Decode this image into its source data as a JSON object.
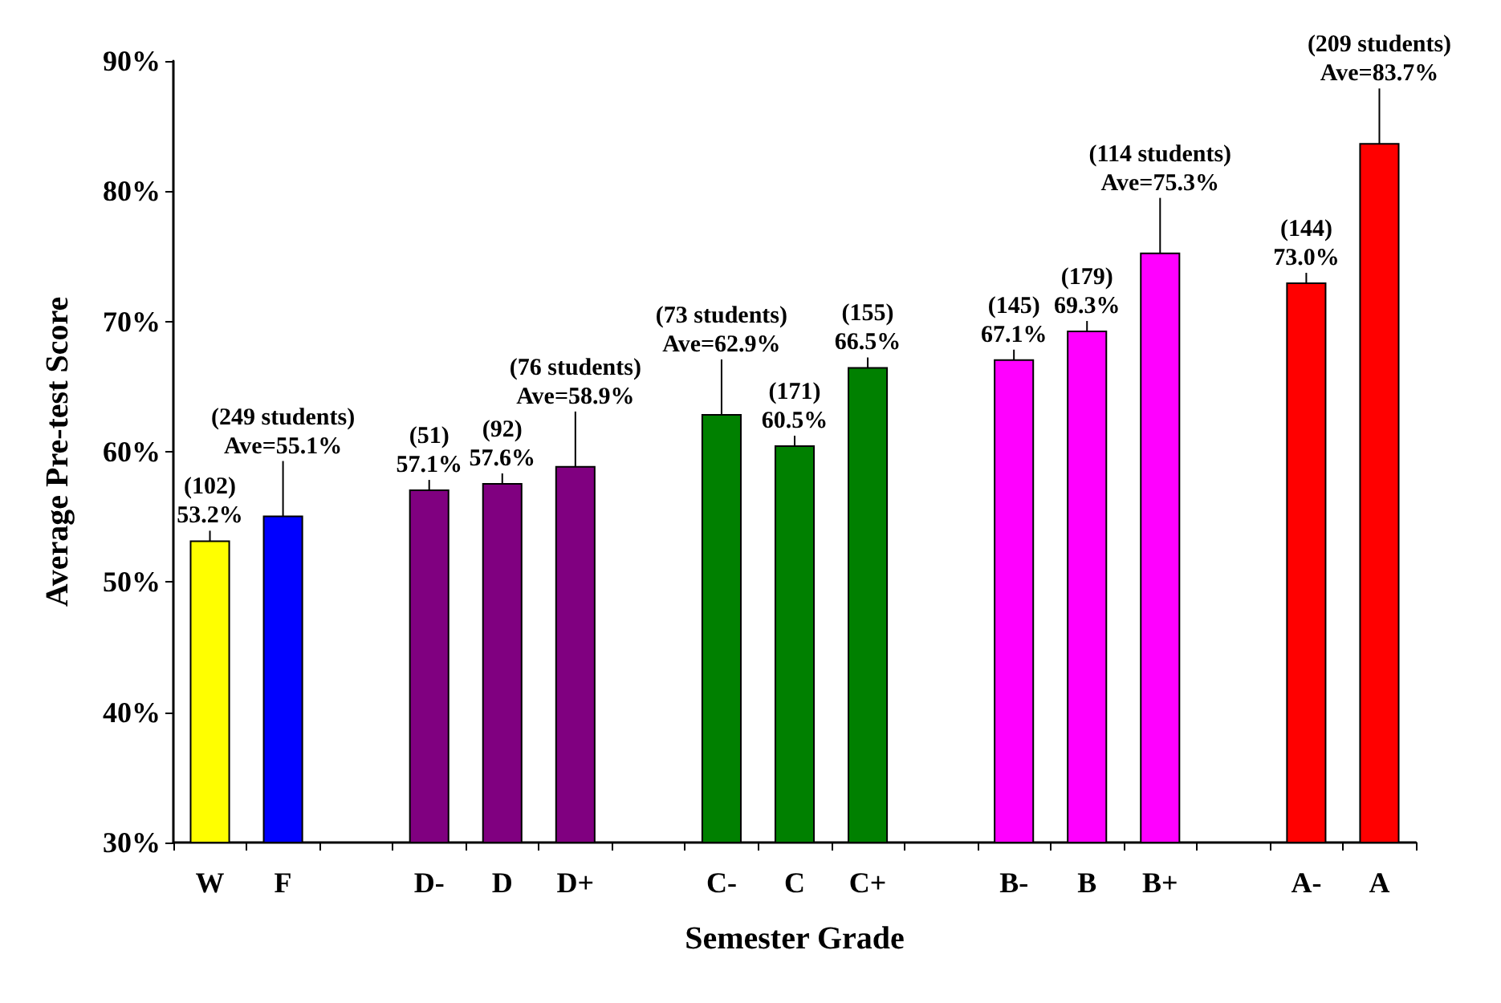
{
  "chart_data": {
    "type": "bar",
    "xlabel": "Semester Grade",
    "ylabel": "Average Pre-test Score",
    "categories": [
      "W",
      "F",
      null,
      "D-",
      "D",
      "D+",
      null,
      "C-",
      "C",
      "C+",
      null,
      "B-",
      "B",
      "B+",
      null,
      "A-",
      "A"
    ],
    "values": [
      53.2,
      55.1,
      null,
      57.1,
      57.6,
      58.9,
      null,
      62.9,
      60.5,
      66.5,
      null,
      67.1,
      69.3,
      75.3,
      null,
      73.0,
      83.7
    ],
    "colors": [
      "#ffff00",
      "#0000ff",
      null,
      "#800080",
      "#800080",
      "#800080",
      null,
      "#008000",
      "#008000",
      "#008000",
      null,
      "#ff00ff",
      "#ff00ff",
      "#ff00ff",
      null,
      "#ff0000",
      "#ff0000"
    ],
    "value_labels": [
      "(102)\n53.2%",
      "(249 students)\nAve=55.1%",
      null,
      "(51)\n57.1%",
      "(92)\n57.6%",
      "(76 students)\nAve=58.9%",
      null,
      "(73 students)\nAve=62.9%",
      "(171)\n60.5%",
      "(155)\n66.5%",
      null,
      "(145)\n67.1%",
      "(179)\n69.3%",
      "(114 students)\nAve=75.3%",
      null,
      "(144)\n73.0%",
      "(209 students)\nAve=83.7%"
    ],
    "ylim": [
      30,
      90
    ],
    "yticks": [
      {
        "value": 30,
        "label": "30%"
      },
      {
        "value": 40,
        "label": "40%"
      },
      {
        "value": 50,
        "label": "50%"
      },
      {
        "value": 60,
        "label": "60%"
      },
      {
        "value": 70,
        "label": "70%"
      },
      {
        "value": 80,
        "label": "80%"
      },
      {
        "value": 90,
        "label": "90%"
      }
    ],
    "grid": false
  }
}
